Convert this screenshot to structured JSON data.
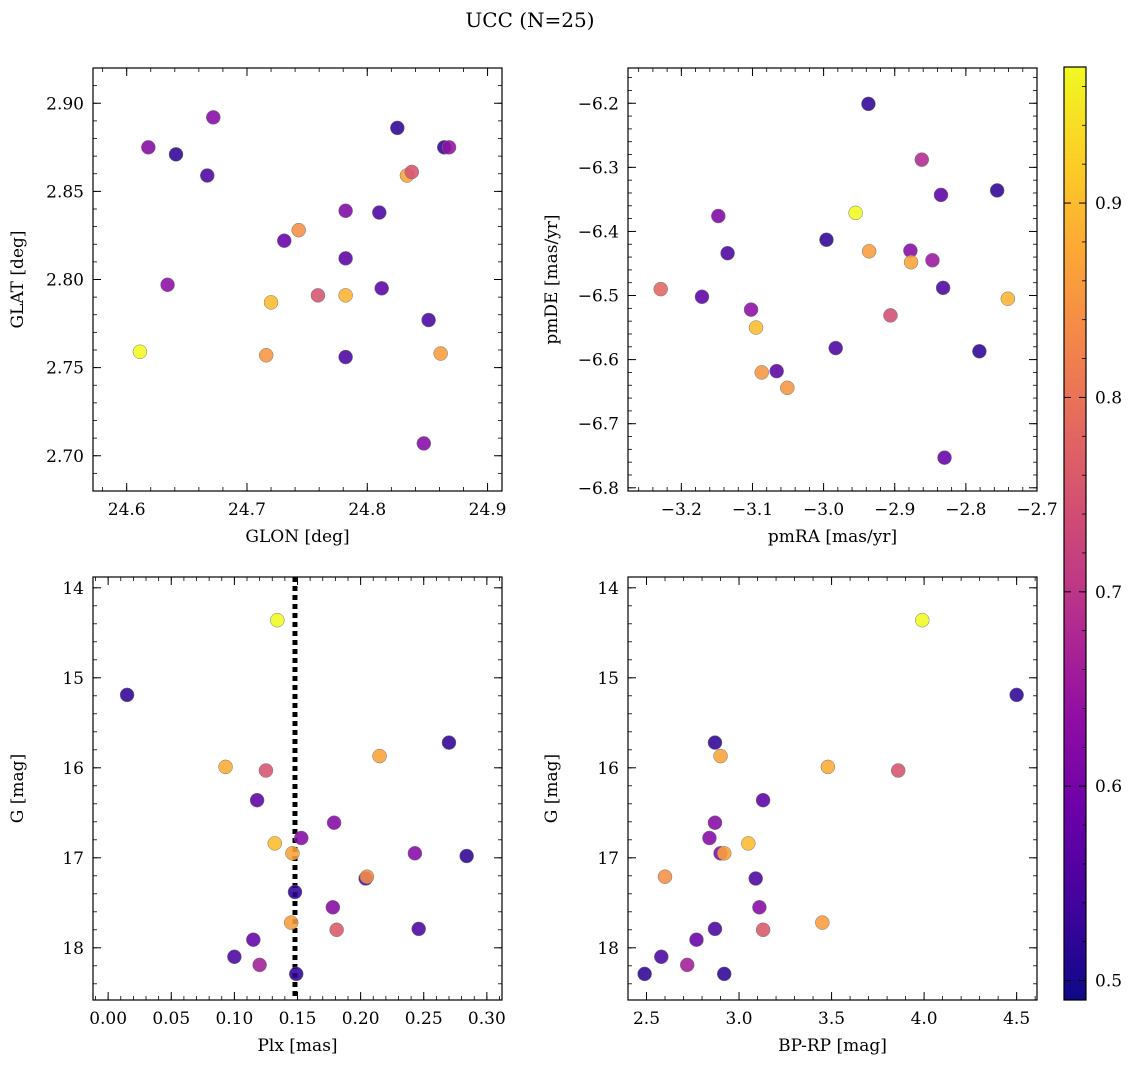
{
  "suptitle": "UCC (N=25)",
  "colorbar": {
    "min": 0.49,
    "max": 0.97,
    "ticks": [
      0.5,
      0.6,
      0.7,
      0.8,
      0.9
    ],
    "tick_labels": [
      "0.5",
      "0.6",
      "0.7",
      "0.8",
      "0.9"
    ],
    "colormap": "plasma"
  },
  "chart_data": [
    {
      "type": "scatter",
      "xlabel": "GLON [deg]",
      "ylabel": "GLAT [deg]",
      "xlim": [
        24.572,
        24.912
      ],
      "ylim": [
        2.68,
        2.92
      ],
      "x_ticks": [
        24.6,
        24.7,
        24.8,
        24.9
      ],
      "x_tick_labels": [
        "24.6",
        "24.7",
        "24.8",
        "24.9"
      ],
      "y_ticks": [
        2.7,
        2.75,
        2.8,
        2.85,
        2.9
      ],
      "y_tick_labels": [
        "2.70",
        "2.75",
        "2.80",
        "2.85",
        "2.90"
      ],
      "y_inverted": false,
      "points": [
        {
          "x": 24.611,
          "y": 2.759,
          "c": 0.97
        },
        {
          "x": 24.618,
          "y": 2.875,
          "c": 0.62
        },
        {
          "x": 24.634,
          "y": 2.797,
          "c": 0.63
        },
        {
          "x": 24.641,
          "y": 2.871,
          "c": 0.52
        },
        {
          "x": 24.667,
          "y": 2.859,
          "c": 0.55
        },
        {
          "x": 24.672,
          "y": 2.892,
          "c": 0.62
        },
        {
          "x": 24.716,
          "y": 2.757,
          "c": 0.85
        },
        {
          "x": 24.72,
          "y": 2.787,
          "c": 0.9
        },
        {
          "x": 24.731,
          "y": 2.822,
          "c": 0.58
        },
        {
          "x": 24.743,
          "y": 2.828,
          "c": 0.84
        },
        {
          "x": 24.759,
          "y": 2.791,
          "c": 0.75
        },
        {
          "x": 24.782,
          "y": 2.839,
          "c": 0.61
        },
        {
          "x": 24.782,
          "y": 2.812,
          "c": 0.57
        },
        {
          "x": 24.782,
          "y": 2.791,
          "c": 0.89
        },
        {
          "x": 24.782,
          "y": 2.756,
          "c": 0.55
        },
        {
          "x": 24.81,
          "y": 2.838,
          "c": 0.55
        },
        {
          "x": 24.812,
          "y": 2.795,
          "c": 0.57
        },
        {
          "x": 24.825,
          "y": 2.886,
          "c": 0.52
        },
        {
          "x": 24.833,
          "y": 2.859,
          "c": 0.87
        },
        {
          "x": 24.837,
          "y": 2.861,
          "c": 0.75
        },
        {
          "x": 24.847,
          "y": 2.707,
          "c": 0.62
        },
        {
          "x": 24.851,
          "y": 2.777,
          "c": 0.55
        },
        {
          "x": 24.861,
          "y": 2.758,
          "c": 0.86
        },
        {
          "x": 24.864,
          "y": 2.875,
          "c": 0.52
        },
        {
          "x": 24.868,
          "y": 2.875,
          "c": 0.64
        }
      ]
    },
    {
      "type": "scatter",
      "xlabel": "pmRA [mas/yr]",
      "ylabel": "pmDE [mas/yr]",
      "xlim": [
        -3.275,
        -2.7
      ],
      "ylim": [
        -6.805,
        -6.145
      ],
      "x_ticks": [
        -3.2,
        -3.1,
        -3.0,
        -2.9,
        -2.8,
        -2.7
      ],
      "x_tick_labels": [
        "−3.2",
        "−3.1",
        "−3.0",
        "−2.9",
        "−2.8",
        "−2.7"
      ],
      "y_ticks": [
        -6.8,
        -6.7,
        -6.6,
        -6.5,
        -6.4,
        -6.3,
        -6.2
      ],
      "y_tick_labels": [
        "−6.8",
        "−6.7",
        "−6.6",
        "−6.5",
        "−6.4",
        "−6.3",
        "−6.2"
      ],
      "y_inverted": false,
      "points": [
        {
          "x": -3.229,
          "y": -6.49,
          "c": 0.78
        },
        {
          "x": -3.171,
          "y": -6.502,
          "c": 0.57
        },
        {
          "x": -3.148,
          "y": -6.376,
          "c": 0.61
        },
        {
          "x": -3.135,
          "y": -6.434,
          "c": 0.55
        },
        {
          "x": -3.102,
          "y": -6.522,
          "c": 0.63
        },
        {
          "x": -3.095,
          "y": -6.55,
          "c": 0.9
        },
        {
          "x": -3.087,
          "y": -6.62,
          "c": 0.85
        },
        {
          "x": -3.066,
          "y": -6.618,
          "c": 0.57
        },
        {
          "x": -3.051,
          "y": -6.644,
          "c": 0.85
        },
        {
          "x": -2.996,
          "y": -6.413,
          "c": 0.52
        },
        {
          "x": -2.983,
          "y": -6.582,
          "c": 0.55
        },
        {
          "x": -2.955,
          "y": -6.371,
          "c": 0.97
        },
        {
          "x": -2.937,
          "y": -6.201,
          "c": 0.52
        },
        {
          "x": -2.936,
          "y": -6.431,
          "c": 0.86
        },
        {
          "x": -2.906,
          "y": -6.531,
          "c": 0.74
        },
        {
          "x": -2.878,
          "y": -6.43,
          "c": 0.62
        },
        {
          "x": -2.877,
          "y": -6.448,
          "c": 0.87
        },
        {
          "x": -2.862,
          "y": -6.288,
          "c": 0.68
        },
        {
          "x": -2.847,
          "y": -6.445,
          "c": 0.65
        },
        {
          "x": -2.835,
          "y": -6.343,
          "c": 0.57
        },
        {
          "x": -2.832,
          "y": -6.488,
          "c": 0.55
        },
        {
          "x": -2.83,
          "y": -6.753,
          "c": 0.58
        },
        {
          "x": -2.781,
          "y": -6.587,
          "c": 0.52
        },
        {
          "x": -2.756,
          "y": -6.336,
          "c": 0.52
        },
        {
          "x": -2.741,
          "y": -6.505,
          "c": 0.89
        }
      ]
    },
    {
      "type": "scatter",
      "xlabel": "Plx [mas]",
      "ylabel": "G [mag]",
      "xlim": [
        -0.012,
        0.312
      ],
      "ylim": [
        13.88,
        18.58
      ],
      "x_ticks": [
        0.0,
        0.05,
        0.1,
        0.15,
        0.2,
        0.25,
        0.3
      ],
      "x_tick_labels": [
        "0.00",
        "0.05",
        "0.10",
        "0.15",
        "0.20",
        "0.25",
        "0.30"
      ],
      "y_ticks": [
        14,
        15,
        16,
        17,
        18
      ],
      "y_tick_labels": [
        "14",
        "15",
        "16",
        "17",
        "18"
      ],
      "y_inverted": true,
      "vline": {
        "x": 0.148,
        "style": "dotted"
      },
      "points": [
        {
          "x": 0.015,
          "y": 15.19,
          "c": 0.52
        },
        {
          "x": 0.093,
          "y": 15.99,
          "c": 0.88
        },
        {
          "x": 0.1,
          "y": 18.1,
          "c": 0.55
        },
        {
          "x": 0.115,
          "y": 17.91,
          "c": 0.58
        },
        {
          "x": 0.118,
          "y": 16.36,
          "c": 0.57
        },
        {
          "x": 0.12,
          "y": 18.19,
          "c": 0.66
        },
        {
          "x": 0.125,
          "y": 16.03,
          "c": 0.75
        },
        {
          "x": 0.132,
          "y": 16.84,
          "c": 0.9
        },
        {
          "x": 0.134,
          "y": 14.36,
          "c": 0.97
        },
        {
          "x": 0.145,
          "y": 17.72,
          "c": 0.86
        },
        {
          "x": 0.146,
          "y": 16.95,
          "c": 0.87
        },
        {
          "x": 0.148,
          "y": 17.38,
          "c": 0.52
        },
        {
          "x": 0.149,
          "y": 18.29,
          "c": 0.52
        },
        {
          "x": 0.153,
          "y": 16.78,
          "c": 0.62
        },
        {
          "x": 0.178,
          "y": 17.55,
          "c": 0.62
        },
        {
          "x": 0.179,
          "y": 16.61,
          "c": 0.62
        },
        {
          "x": 0.181,
          "y": 17.8,
          "c": 0.76
        },
        {
          "x": 0.204,
          "y": 17.23,
          "c": 0.55
        },
        {
          "x": 0.205,
          "y": 17.21,
          "c": 0.84
        },
        {
          "x": 0.215,
          "y": 15.87,
          "c": 0.87
        },
        {
          "x": 0.243,
          "y": 16.95,
          "c": 0.62
        },
        {
          "x": 0.246,
          "y": 17.79,
          "c": 0.55
        },
        {
          "x": 0.27,
          "y": 15.72,
          "c": 0.52
        },
        {
          "x": 0.284,
          "y": 16.98,
          "c": 0.52
        }
      ]
    },
    {
      "type": "scatter",
      "xlabel": "BP-RP [mag]",
      "ylabel": "G [mag]",
      "xlim": [
        2.4,
        4.61
      ],
      "ylim": [
        13.88,
        18.58
      ],
      "x_ticks": [
        2.5,
        3.0,
        3.5,
        4.0,
        4.5
      ],
      "x_tick_labels": [
        "2.5",
        "3.0",
        "3.5",
        "4.0",
        "4.5"
      ],
      "y_ticks": [
        14,
        15,
        16,
        17,
        18
      ],
      "y_tick_labels": [
        "14",
        "15",
        "16",
        "17",
        "18"
      ],
      "y_inverted": true,
      "points": [
        {
          "x": 2.49,
          "y": 18.29,
          "c": 0.52
        },
        {
          "x": 2.58,
          "y": 18.1,
          "c": 0.55
        },
        {
          "x": 2.6,
          "y": 17.21,
          "c": 0.84
        },
        {
          "x": 2.72,
          "y": 18.19,
          "c": 0.66
        },
        {
          "x": 2.77,
          "y": 17.91,
          "c": 0.58
        },
        {
          "x": 2.84,
          "y": 16.78,
          "c": 0.62
        },
        {
          "x": 2.87,
          "y": 16.61,
          "c": 0.62
        },
        {
          "x": 2.87,
          "y": 15.72,
          "c": 0.52
        },
        {
          "x": 2.87,
          "y": 17.79,
          "c": 0.55
        },
        {
          "x": 2.9,
          "y": 15.87,
          "c": 0.87
        },
        {
          "x": 2.9,
          "y": 16.95,
          "c": 0.62
        },
        {
          "x": 2.92,
          "y": 16.95,
          "c": 0.87
        },
        {
          "x": 2.92,
          "y": 18.29,
          "c": 0.52
        },
        {
          "x": 3.05,
          "y": 16.84,
          "c": 0.9
        },
        {
          "x": 3.09,
          "y": 17.23,
          "c": 0.55
        },
        {
          "x": 3.11,
          "y": 17.55,
          "c": 0.62
        },
        {
          "x": 3.13,
          "y": 16.36,
          "c": 0.57
        },
        {
          "x": 3.13,
          "y": 17.8,
          "c": 0.76
        },
        {
          "x": 3.45,
          "y": 17.72,
          "c": 0.86
        },
        {
          "x": 3.48,
          "y": 15.99,
          "c": 0.88
        },
        {
          "x": 3.86,
          "y": 16.03,
          "c": 0.75
        },
        {
          "x": 3.99,
          "y": 14.36,
          "c": 0.97
        },
        {
          "x": 4.5,
          "y": 15.19,
          "c": 0.52
        }
      ]
    }
  ]
}
